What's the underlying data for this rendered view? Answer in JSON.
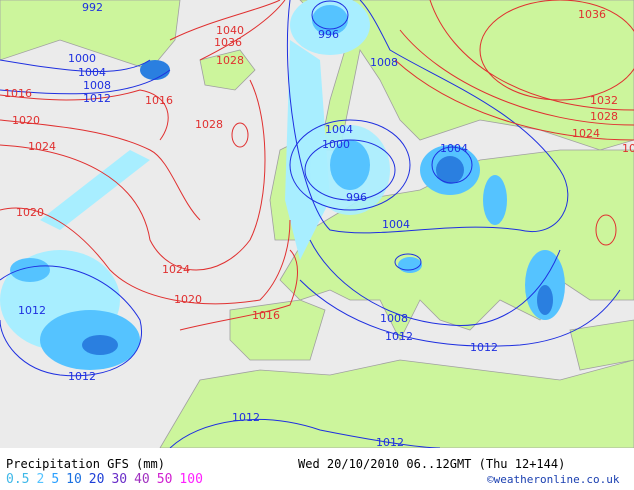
{
  "footer": {
    "title": "Precipitation GFS (mm)",
    "datetime": "Wed 20/10/2010 06..12GMT  (Thu 12+144)",
    "credit": "©weatheronline.co.uk",
    "legend": [
      {
        "value": "0.5",
        "color": "#7fd8ff"
      },
      {
        "value": "2",
        "color": "#55c3ff"
      },
      {
        "value": "5",
        "color": "#2aa0ff"
      },
      {
        "value": "10",
        "color": "#1a70e0"
      },
      {
        "value": "20",
        "color": "#1f3fd6"
      },
      {
        "value": "30",
        "color": "#6a2ec8"
      },
      {
        "value": "40",
        "color": "#a030c0"
      },
      {
        "value": "50",
        "color": "#d020d0"
      },
      {
        "value": "100",
        "color": "#ff20ff"
      }
    ]
  },
  "colors": {
    "sea": "#ebebeb",
    "land": "#ccf59c",
    "border": "#a0a0a0",
    "low_isobar": "#1e2fe0",
    "high_isobar": "#e03030",
    "precip_light": "#a8eeff",
    "precip_mid": "#55c3ff",
    "precip_heavy": "#2a7fe0"
  },
  "isobar_labels": {
    "blue": [
      "992",
      "996",
      "1000",
      "1004",
      "1008",
      "1012",
      "1008",
      "1004",
      "1000",
      "996",
      "1004",
      "1004",
      "1008",
      "1012",
      "1012",
      "1012",
      "1012",
      "1012",
      "1012"
    ],
    "red": [
      "1040",
      "1036",
      "1028",
      "1016",
      "1016",
      "1020",
      "1024",
      "1028",
      "1020",
      "1024",
      "1020",
      "1016",
      "1036",
      "1032",
      "1028",
      "1024",
      "10"
    ]
  }
}
